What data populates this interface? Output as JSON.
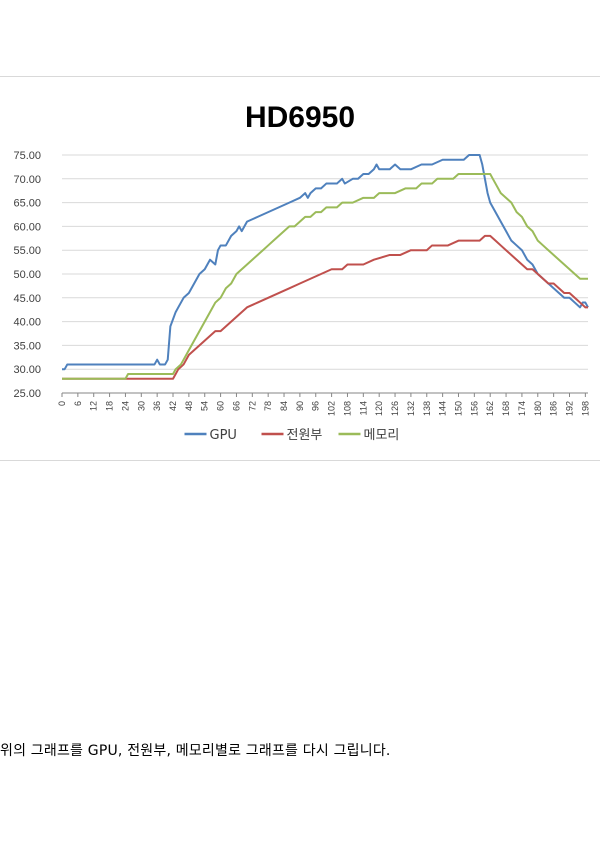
{
  "chart_data": {
    "type": "line",
    "title": "HD6950",
    "xlabel": "",
    "ylabel": "",
    "ylim": [
      25,
      75
    ],
    "yticks": [
      "25.00",
      "30.00",
      "35.00",
      "40.00",
      "45.00",
      "50.00",
      "55.00",
      "60.00",
      "65.00",
      "70.00",
      "75.00"
    ],
    "xlim": [
      0,
      199
    ],
    "xticks": [
      "0",
      "6",
      "12",
      "18",
      "24",
      "30",
      "36",
      "42",
      "48",
      "54",
      "60",
      "66",
      "72",
      "78",
      "84",
      "90",
      "96",
      "102",
      "108",
      "114",
      "120",
      "126",
      "132",
      "138",
      "144",
      "150",
      "156",
      "162",
      "168",
      "174",
      "180",
      "186",
      "192",
      "198"
    ],
    "grid": true,
    "legend": "bottom",
    "series": [
      {
        "name": "GPU",
        "color": "#4f81bd",
        "points": [
          [
            0,
            30
          ],
          [
            1,
            30
          ],
          [
            2,
            31
          ],
          [
            35,
            31
          ],
          [
            36,
            32
          ],
          [
            37,
            31
          ],
          [
            39,
            31
          ],
          [
            40,
            32
          ],
          [
            41,
            39
          ],
          [
            43,
            42
          ],
          [
            44,
            43
          ],
          [
            46,
            45
          ],
          [
            48,
            46
          ],
          [
            50,
            48
          ],
          [
            52,
            50
          ],
          [
            54,
            51
          ],
          [
            56,
            53
          ],
          [
            58,
            52
          ],
          [
            59,
            55
          ],
          [
            60,
            56
          ],
          [
            62,
            56
          ],
          [
            64,
            58
          ],
          [
            66,
            59
          ],
          [
            67,
            60
          ],
          [
            68,
            59
          ],
          [
            70,
            61
          ],
          [
            74,
            62
          ],
          [
            78,
            63
          ],
          [
            82,
            64
          ],
          [
            86,
            65
          ],
          [
            90,
            66
          ],
          [
            92,
            67
          ],
          [
            93,
            66
          ],
          [
            94,
            67
          ],
          [
            96,
            68
          ],
          [
            98,
            68
          ],
          [
            100,
            69
          ],
          [
            104,
            69
          ],
          [
            106,
            70
          ],
          [
            107,
            69
          ],
          [
            110,
            70
          ],
          [
            112,
            70
          ],
          [
            114,
            71
          ],
          [
            116,
            71
          ],
          [
            118,
            72
          ],
          [
            119,
            73
          ],
          [
            120,
            72
          ],
          [
            124,
            72
          ],
          [
            126,
            73
          ],
          [
            128,
            72
          ],
          [
            132,
            72
          ],
          [
            136,
            73
          ],
          [
            140,
            73
          ],
          [
            144,
            74
          ],
          [
            148,
            74
          ],
          [
            152,
            74
          ],
          [
            154,
            75
          ],
          [
            158,
            75
          ],
          [
            159,
            73
          ],
          [
            160,
            70
          ],
          [
            161,
            67
          ],
          [
            162,
            65
          ],
          [
            164,
            63
          ],
          [
            166,
            61
          ],
          [
            168,
            59
          ],
          [
            170,
            57
          ],
          [
            172,
            56
          ],
          [
            174,
            55
          ],
          [
            176,
            53
          ],
          [
            178,
            52
          ],
          [
            180,
            50
          ],
          [
            182,
            49
          ],
          [
            184,
            48
          ],
          [
            186,
            47
          ],
          [
            188,
            46
          ],
          [
            190,
            45
          ],
          [
            192,
            45
          ],
          [
            194,
            44
          ],
          [
            196,
            43
          ],
          [
            197,
            44
          ],
          [
            198,
            44
          ],
          [
            199,
            43
          ]
        ]
      },
      {
        "name": "전원부",
        "color": "#c0504d",
        "points": [
          [
            0,
            28
          ],
          [
            42,
            28
          ],
          [
            43,
            29
          ],
          [
            44,
            30
          ],
          [
            46,
            31
          ],
          [
            48,
            33
          ],
          [
            50,
            34
          ],
          [
            52,
            35
          ],
          [
            54,
            36
          ],
          [
            56,
            37
          ],
          [
            58,
            38
          ],
          [
            60,
            38
          ],
          [
            62,
            39
          ],
          [
            64,
            40
          ],
          [
            66,
            41
          ],
          [
            68,
            42
          ],
          [
            70,
            43
          ],
          [
            74,
            44
          ],
          [
            78,
            45
          ],
          [
            82,
            46
          ],
          [
            86,
            47
          ],
          [
            90,
            48
          ],
          [
            94,
            49
          ],
          [
            98,
            50
          ],
          [
            102,
            51
          ],
          [
            106,
            51
          ],
          [
            108,
            52
          ],
          [
            114,
            52
          ],
          [
            118,
            53
          ],
          [
            124,
            54
          ],
          [
            128,
            54
          ],
          [
            132,
            55
          ],
          [
            138,
            55
          ],
          [
            140,
            56
          ],
          [
            146,
            56
          ],
          [
            150,
            57
          ],
          [
            154,
            57
          ],
          [
            158,
            57
          ],
          [
            160,
            58
          ],
          [
            162,
            58
          ],
          [
            164,
            57
          ],
          [
            166,
            56
          ],
          [
            168,
            55
          ],
          [
            170,
            54
          ],
          [
            172,
            53
          ],
          [
            174,
            52
          ],
          [
            176,
            51
          ],
          [
            178,
            51
          ],
          [
            180,
            50
          ],
          [
            182,
            49
          ],
          [
            184,
            48
          ],
          [
            186,
            48
          ],
          [
            188,
            47
          ],
          [
            190,
            46
          ],
          [
            192,
            46
          ],
          [
            194,
            45
          ],
          [
            196,
            44
          ],
          [
            198,
            43
          ],
          [
            199,
            43
          ]
        ]
      },
      {
        "name": "메모리",
        "color": "#9bbb59",
        "points": [
          [
            0,
            28
          ],
          [
            24,
            28
          ],
          [
            25,
            29
          ],
          [
            42,
            29
          ],
          [
            43,
            30
          ],
          [
            45,
            31
          ],
          [
            46,
            32
          ],
          [
            48,
            34
          ],
          [
            50,
            36
          ],
          [
            52,
            38
          ],
          [
            54,
            40
          ],
          [
            56,
            42
          ],
          [
            58,
            44
          ],
          [
            60,
            45
          ],
          [
            62,
            47
          ],
          [
            64,
            48
          ],
          [
            66,
            50
          ],
          [
            68,
            51
          ],
          [
            70,
            52
          ],
          [
            72,
            53
          ],
          [
            74,
            54
          ],
          [
            76,
            55
          ],
          [
            78,
            56
          ],
          [
            80,
            57
          ],
          [
            82,
            58
          ],
          [
            84,
            59
          ],
          [
            86,
            60
          ],
          [
            88,
            60
          ],
          [
            90,
            61
          ],
          [
            92,
            62
          ],
          [
            94,
            62
          ],
          [
            96,
            63
          ],
          [
            98,
            63
          ],
          [
            100,
            64
          ],
          [
            104,
            64
          ],
          [
            106,
            65
          ],
          [
            110,
            65
          ],
          [
            114,
            66
          ],
          [
            118,
            66
          ],
          [
            120,
            67
          ],
          [
            126,
            67
          ],
          [
            130,
            68
          ],
          [
            134,
            68
          ],
          [
            136,
            69
          ],
          [
            140,
            69
          ],
          [
            142,
            70
          ],
          [
            148,
            70
          ],
          [
            150,
            71
          ],
          [
            156,
            71
          ],
          [
            162,
            71
          ],
          [
            163,
            70
          ],
          [
            164,
            69
          ],
          [
            166,
            67
          ],
          [
            168,
            66
          ],
          [
            170,
            65
          ],
          [
            172,
            63
          ],
          [
            174,
            62
          ],
          [
            176,
            60
          ],
          [
            178,
            59
          ],
          [
            180,
            57
          ],
          [
            182,
            56
          ],
          [
            184,
            55
          ],
          [
            186,
            54
          ],
          [
            188,
            53
          ],
          [
            190,
            52
          ],
          [
            192,
            51
          ],
          [
            194,
            50
          ],
          [
            196,
            49
          ],
          [
            198,
            49
          ],
          [
            199,
            49
          ]
        ]
      }
    ]
  },
  "caption": "위의  그래프를  GPU,  전원부,  메모리별로  그래프를  다시  그립니다."
}
